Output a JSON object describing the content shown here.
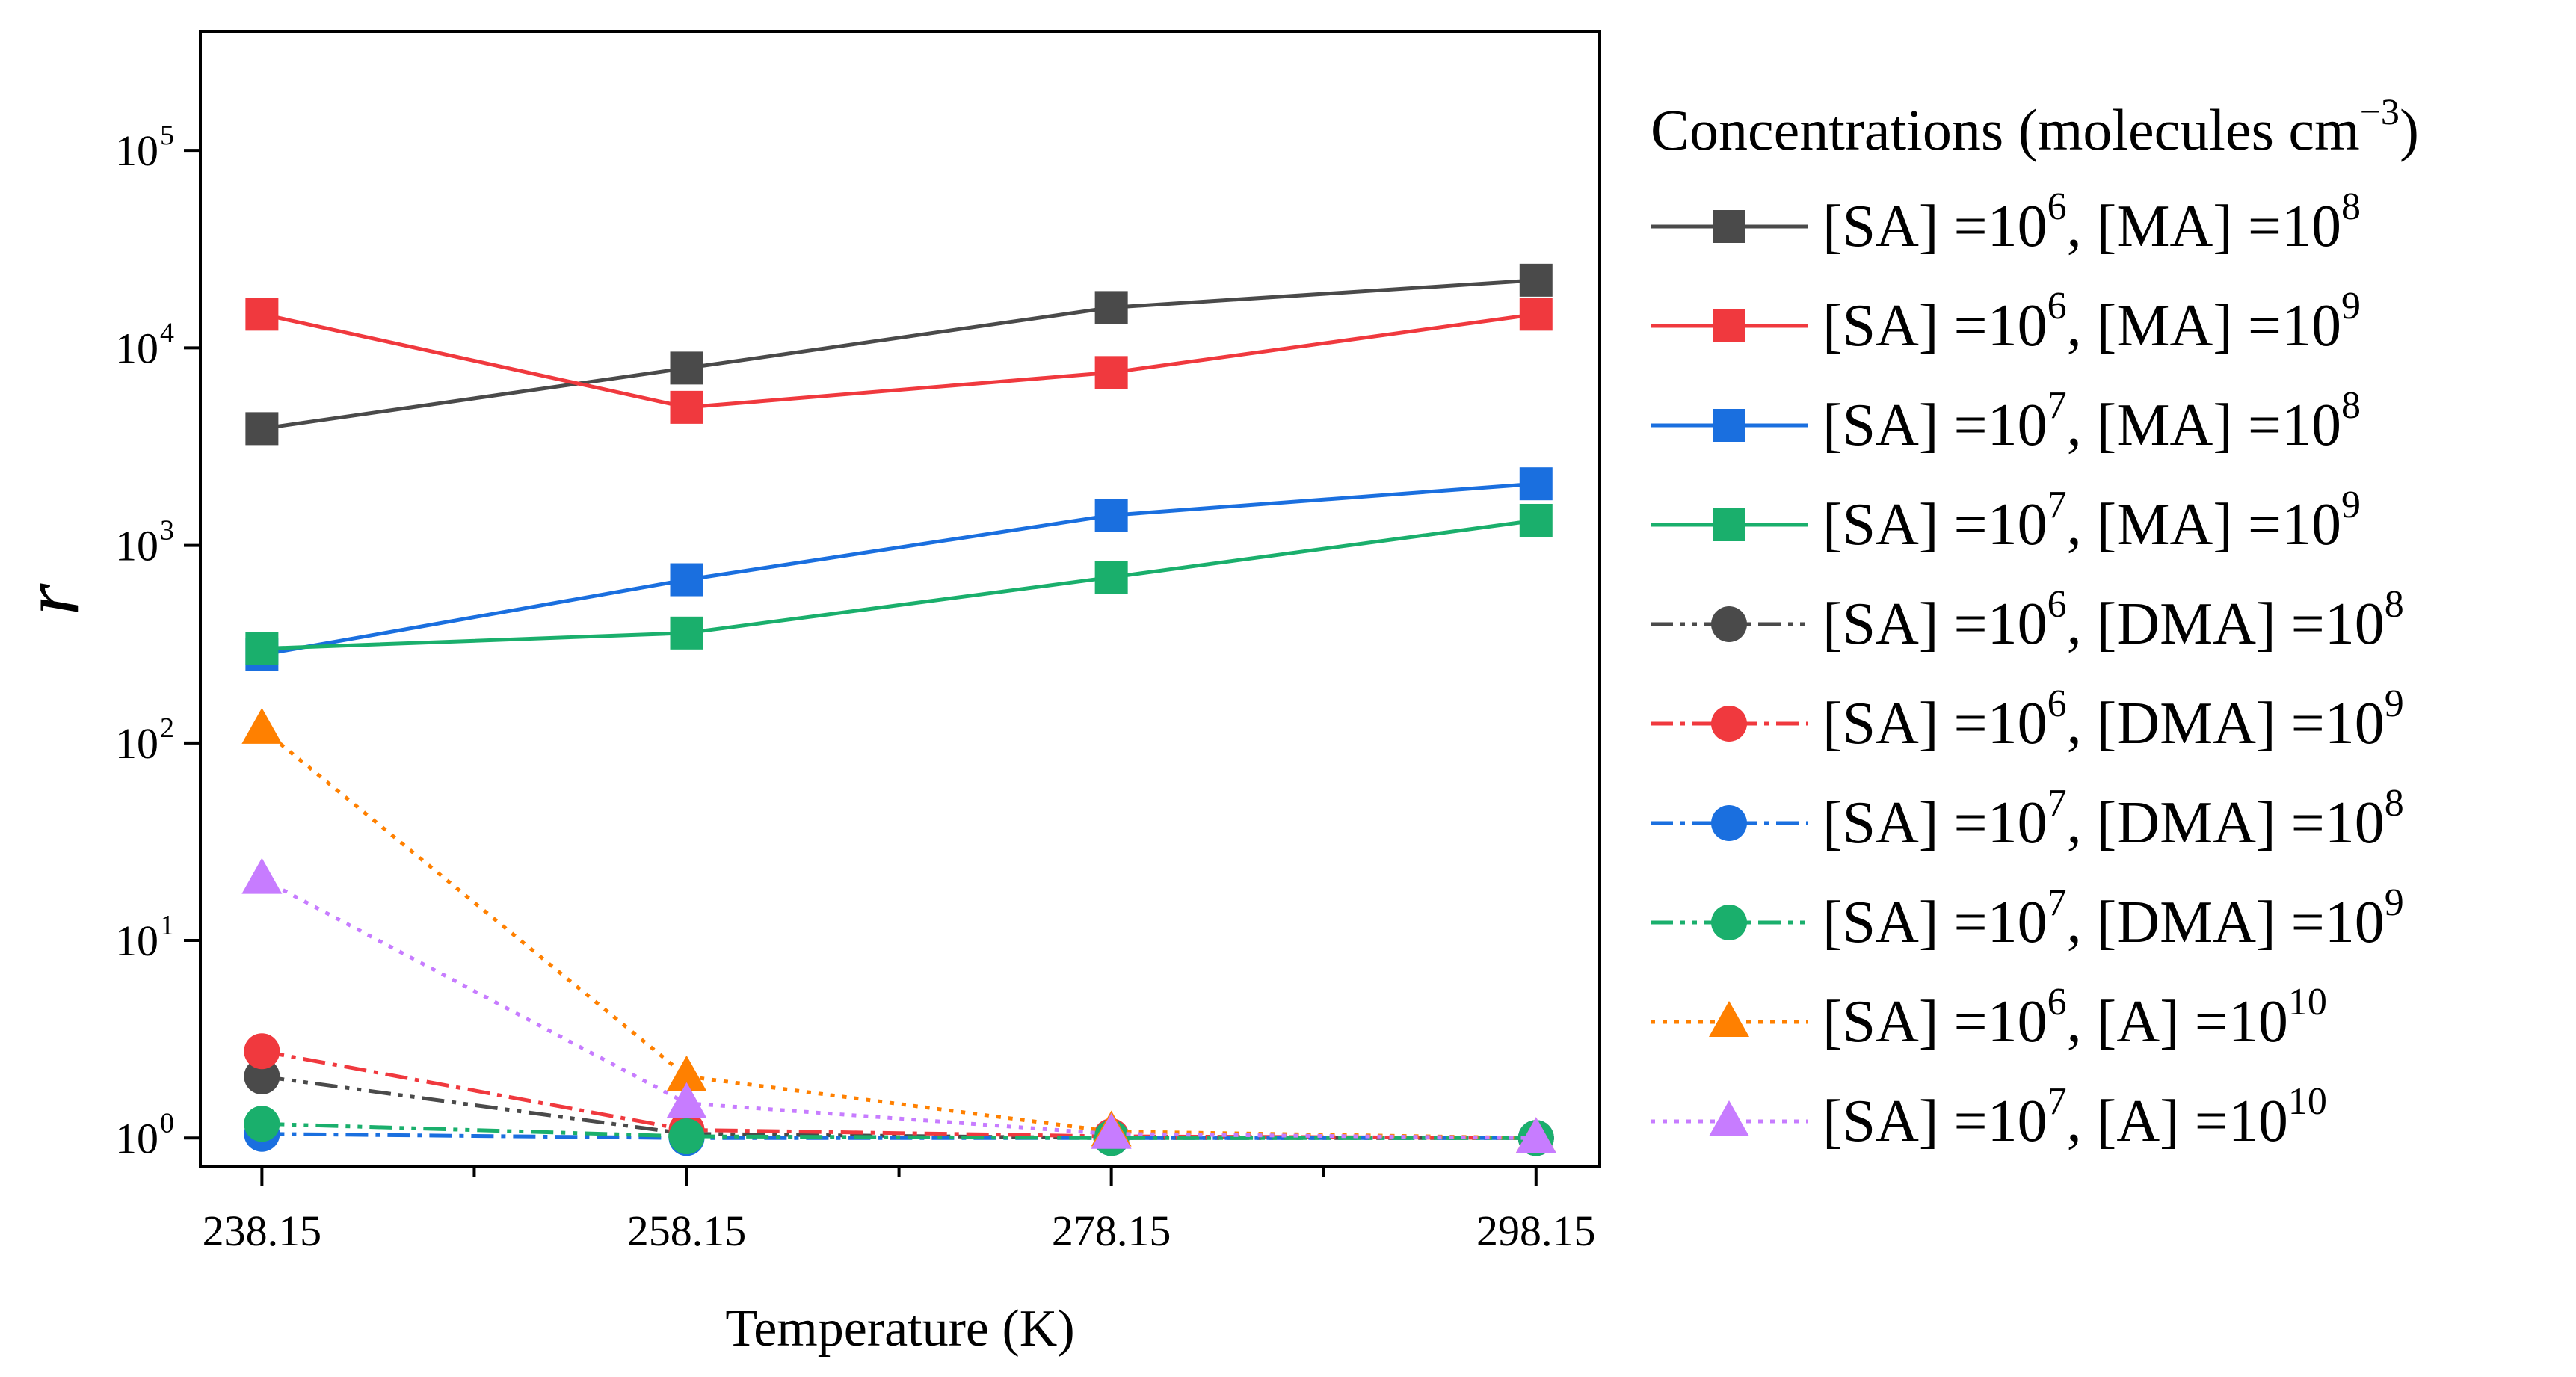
{
  "chart_data": {
    "type": "line",
    "title": "",
    "xlabel": "Temperature (K)",
    "ylabel": "r",
    "x": [
      238.15,
      258.15,
      278.15,
      298.15
    ],
    "x_tick_labels": [
      "238.15",
      "258.15",
      "278.15",
      "298.15"
    ],
    "xlim": [
      235.25,
      301.15
    ],
    "yscale": "log",
    "ylim": [
      0.72,
      400000
    ],
    "y_ticks": [
      {
        "value": 1,
        "base": "10",
        "exp": "0"
      },
      {
        "value": 10,
        "base": "10",
        "exp": "1"
      },
      {
        "value": 100,
        "base": "10",
        "exp": "2"
      },
      {
        "value": 1000,
        "base": "10",
        "exp": "3"
      },
      {
        "value": 10000,
        "base": "10",
        "exp": "4"
      },
      {
        "value": 100000,
        "base": "10",
        "exp": "5"
      }
    ],
    "legend": {
      "title_main": "Concentrations (molecules cm",
      "title_sup": "−3",
      "title_end": ")",
      "position": "right"
    },
    "series": [
      {
        "name": "[SA] =10^6, [MA] =10^8",
        "label_parts": {
          "a": "[SA] =10",
          "a_sup": "6",
          "b": ", [MA] =10",
          "b_sup": "8"
        },
        "color": "#4a4a4a",
        "marker": "square",
        "line": "solid",
        "values": [
          3900,
          7900,
          16000,
          22000
        ]
      },
      {
        "name": "[SA] =10^6, [MA] =10^9",
        "label_parts": {
          "a": "[SA] =10",
          "a_sup": "6",
          "b": ", [MA] =10",
          "b_sup": "9"
        },
        "color": "#f0393e",
        "marker": "square",
        "line": "solid",
        "values": [
          14800,
          5000,
          7500,
          14800
        ]
      },
      {
        "name": "[SA] =10^7, [MA] =10^8",
        "label_parts": {
          "a": "[SA] =10",
          "a_sup": "7",
          "b": ", [MA] =10",
          "b_sup": "8"
        },
        "color": "#1a6fdf",
        "marker": "square",
        "line": "solid",
        "values": [
          280,
          670,
          1420,
          2050
        ]
      },
      {
        "name": "[SA] =10^7, [MA] =10^9",
        "label_parts": {
          "a": "[SA] =10",
          "a_sup": "7",
          "b": ", [MA] =10",
          "b_sup": "9"
        },
        "color": "#1aaf6c",
        "marker": "square",
        "line": "solid",
        "values": [
          300,
          360,
          690,
          1340
        ]
      },
      {
        "name": "[SA] =10^6, [DMA] =10^8",
        "label_parts": {
          "a": "[SA] =10",
          "a_sup": "6",
          "b": ", [DMA] =10",
          "b_sup": "8"
        },
        "color": "#4a4a4a",
        "marker": "circle",
        "line": "dashdotdot",
        "values": [
          2.05,
          1.05,
          1.0,
          1.0
        ]
      },
      {
        "name": "[SA] =10^6, [DMA] =10^9",
        "label_parts": {
          "a": "[SA] =10",
          "a_sup": "6",
          "b": ", [DMA] =10",
          "b_sup": "9"
        },
        "color": "#f0393e",
        "marker": "circle",
        "line": "dashdot",
        "values": [
          2.75,
          1.1,
          1.02,
          1.0
        ]
      },
      {
        "name": "[SA] =10^7, [DMA] =10^8",
        "label_parts": {
          "a": "[SA] =10",
          "a_sup": "7",
          "b": ", [DMA] =10",
          "b_sup": "8"
        },
        "color": "#1a6fdf",
        "marker": "circle",
        "line": "dashdot",
        "values": [
          1.05,
          1.0,
          1.0,
          1.0
        ]
      },
      {
        "name": "[SA] =10^7, [DMA] =10^9",
        "label_parts": {
          "a": "[SA] =10",
          "a_sup": "7",
          "b": ", [DMA] =10",
          "b_sup": "9"
        },
        "color": "#1aaf6c",
        "marker": "circle",
        "line": "dashdotdot",
        "values": [
          1.18,
          1.02,
          1.0,
          1.0
        ]
      },
      {
        "name": "[SA] =10^6, [A] =10^10",
        "label_parts": {
          "a": "[SA] =10",
          "a_sup": "6",
          "b": ", [A] =10",
          "b_sup": "10"
        },
        "color": "#ff8000",
        "marker": "triangle",
        "line": "dotted",
        "values": [
          118,
          2.05,
          1.08,
          1.0
        ]
      },
      {
        "name": "[SA] =10^7, [A] =10^10",
        "label_parts": {
          "a": "[SA] =10",
          "a_sup": "7",
          "b": ", [A] =10",
          "b_sup": "10"
        },
        "color": "#c77cff",
        "marker": "triangle",
        "line": "dotted",
        "values": [
          20.5,
          1.5,
          1.05,
          1.0
        ]
      }
    ]
  }
}
